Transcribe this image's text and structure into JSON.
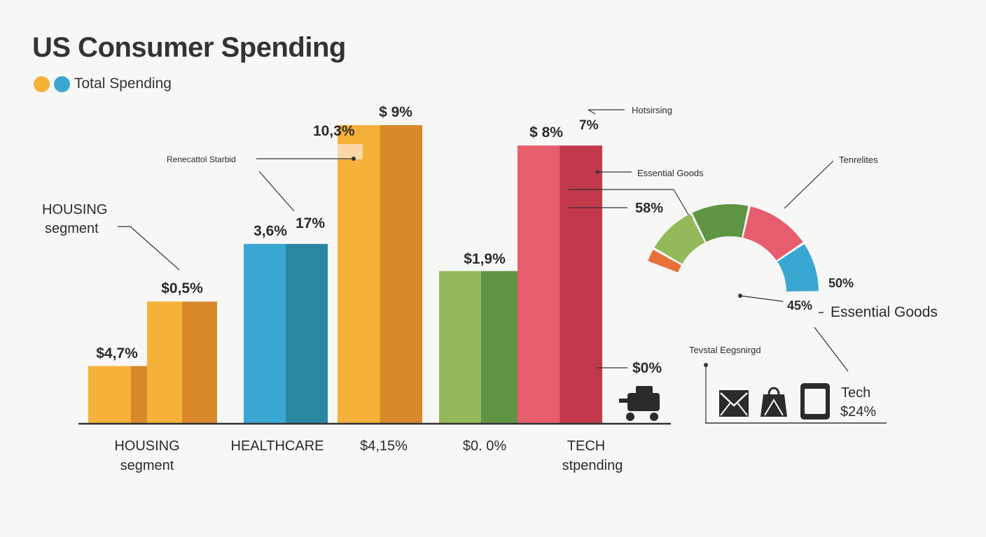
{
  "title": "US Consumer Spending",
  "legend": {
    "label": "Total Spending",
    "dot_colors": [
      "#f5b13a",
      "#3aa7d2"
    ]
  },
  "chart_data": [
    {
      "type": "bar",
      "categories": [
        "HOUSING segment",
        "HEALTHCARE",
        "$4,15%",
        "$0. 0%",
        "TECH stpending"
      ],
      "bars": [
        {
          "category": "HOUSING segment",
          "value": 17,
          "label": "$4,7%",
          "color": "#f5b13a",
          "shade": "#d9892a"
        },
        {
          "category": "HOUSING segment",
          "value": 36,
          "label": "$0,5%",
          "color": "#f5b13a",
          "shade": "#d9892a"
        },
        {
          "category": "HEALTHCARE",
          "value": 53,
          "label": "3,6%",
          "color": "#3aa7d2",
          "shade": "#2a87a3"
        },
        {
          "category": "$4,15%",
          "value": 88,
          "label": "$ 9%",
          "color": "#f5b13a",
          "shade": "#d9892a"
        },
        {
          "category": "$0. 0%",
          "value": 45,
          "label": "$1,9%",
          "color": "#94b95a",
          "shade": "#5e9444"
        },
        {
          "category": "TECH stpending",
          "value": 82,
          "label": "$ 8%",
          "color": "#e65d6d",
          "shade": "#c2394c"
        }
      ],
      "annotations": [
        "HOUSING segment",
        "Renecattol Starbid",
        "10,3%",
        "17%",
        "7%",
        "Hotsirsing",
        "Essential Goods",
        "58%",
        "$0%"
      ]
    },
    {
      "type": "pie",
      "segments": [
        {
          "name": "orange",
          "value": 4,
          "color": "#e8713a"
        },
        {
          "name": "light green",
          "value": 14,
          "color": "#94b95a"
        },
        {
          "name": "dark green",
          "value": 16,
          "color": "#5e9444"
        },
        {
          "name": "red",
          "value": 18,
          "color": "#e65d6d"
        },
        {
          "name": "blue",
          "value": 14,
          "color": "#3aa7d2"
        }
      ],
      "labels": [
        "Tenrelites",
        "50%",
        "45%",
        "Essential Goods"
      ]
    }
  ],
  "icons_panel": {
    "title": "Tevstal Eegsnirgd",
    "icons": [
      "envelope-icon",
      "shopping-bag-icon",
      "tablet-icon"
    ],
    "tech_label": "Tech",
    "tech_value": "$24%"
  },
  "cart_icon": "cart-icon",
  "colors": {
    "axis": "#333333",
    "leader": "#333333"
  }
}
